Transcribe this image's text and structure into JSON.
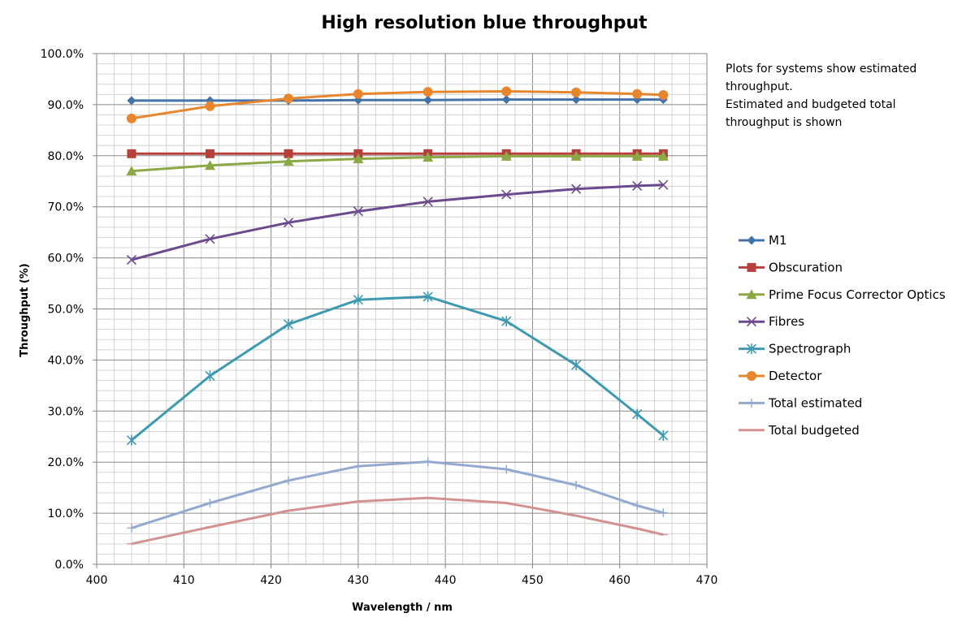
{
  "chart_data": {
    "type": "line",
    "title": "High resolution blue throughput",
    "xlabel": "Wavelength / nm",
    "ylabel": "Throughput (%)",
    "xlim": [
      400,
      470
    ],
    "ylim": [
      0,
      100
    ],
    "x_ticks": [
      "400",
      "410",
      "420",
      "430",
      "440",
      "450",
      "460",
      "470"
    ],
    "y_ticks": [
      "0.0%",
      "10.0%",
      "20.0%",
      "30.0%",
      "40.0%",
      "50.0%",
      "60.0%",
      "70.0%",
      "80.0%",
      "90.0%",
      "100.0%"
    ],
    "grid": true,
    "legend_position": "right",
    "note_lines": [
      "Plots for systems show estimated",
      "throughput.",
      "Estimated and budgeted total",
      "throughput is shown"
    ],
    "x": [
      404,
      413,
      422,
      430,
      438,
      447,
      455,
      462,
      465
    ],
    "series": [
      {
        "name": "M1",
        "color": "#4472A8",
        "marker": "diamond",
        "values": [
          90.8,
          90.8,
          90.8,
          90.9,
          90.9,
          91.0,
          91.0,
          91.0,
          91.0
        ]
      },
      {
        "name": "Obscuration",
        "color": "#B7403D",
        "marker": "square",
        "values": [
          80.4,
          80.4,
          80.4,
          80.4,
          80.4,
          80.4,
          80.4,
          80.4,
          80.4
        ]
      },
      {
        "name": "Prime Focus Corrector Optics",
        "color": "#8BAA46",
        "marker": "triangle",
        "values": [
          77.0,
          78.1,
          78.9,
          79.4,
          79.7,
          79.9,
          79.9,
          79.9,
          79.9
        ]
      },
      {
        "name": "Fibres",
        "color": "#6B4B8E",
        "marker": "x",
        "values": [
          59.6,
          63.7,
          66.9,
          69.1,
          71.0,
          72.4,
          73.5,
          74.1,
          74.3
        ]
      },
      {
        "name": "Spectrograph",
        "color": "#3D9AB0",
        "marker": "asterisk",
        "values": [
          24.3,
          36.9,
          47.0,
          51.8,
          52.4,
          47.6,
          39.0,
          29.4,
          25.2
        ]
      },
      {
        "name": "Detector",
        "color": "#E8862E",
        "marker": "circle",
        "values": [
          87.3,
          89.7,
          91.2,
          92.1,
          92.5,
          92.6,
          92.4,
          92.1,
          91.9
        ]
      },
      {
        "name": "Total estimated",
        "color": "#94A9D0",
        "marker": "plus",
        "values": [
          7.1,
          12.0,
          16.4,
          19.2,
          20.1,
          18.6,
          15.5,
          11.5,
          10.1
        ]
      },
      {
        "name": "Total budgeted",
        "color": "#D39292",
        "marker": "dash",
        "values": [
          4.0,
          7.3,
          10.5,
          12.3,
          13.0,
          12.0,
          9.5,
          7.0,
          5.8
        ]
      }
    ]
  }
}
